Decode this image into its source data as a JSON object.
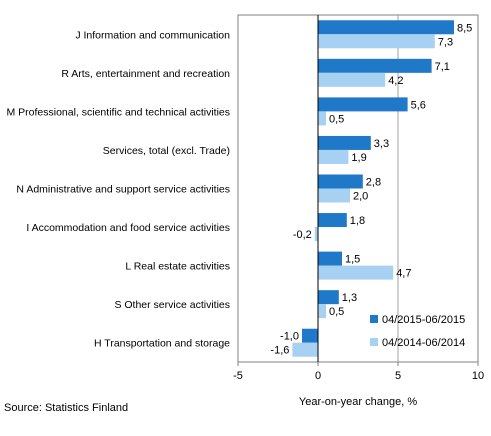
{
  "chart_data": {
    "type": "bar",
    "orientation": "horizontal",
    "title": "",
    "xlabel": "Year-on-year change, %",
    "ylabel": "",
    "xlim": [
      -5,
      10
    ],
    "xticks": [
      -5,
      0,
      5,
      10
    ],
    "xtick_labels": [
      "-5",
      "0",
      "5",
      "10"
    ],
    "reference_line_x": 5,
    "grid": false,
    "legend_position": "bottom-right",
    "categories": [
      "J Information and communication",
      "R Arts, entertainment and recreation",
      "M Professional, scientific and technical activities",
      "Services, total (excl. Trade)",
      "N Administrative and support service activities",
      "I Accommodation and food service activities",
      "L Real estate activities",
      "S Other service activities",
      "H Transportation and storage"
    ],
    "series": [
      {
        "name": "04/2015-06/2015",
        "color": "#1f78c8",
        "values": [
          8.5,
          7.1,
          5.6,
          3.3,
          2.8,
          1.8,
          1.5,
          1.3,
          -1.0
        ],
        "labels": [
          "8,5",
          "7,1",
          "5,6",
          "3,3",
          "2,8",
          "1,8",
          "1,5",
          "1,3",
          "-1,0"
        ]
      },
      {
        "name": "04/2014-06/2014",
        "color": "#a6d1f2",
        "values": [
          7.3,
          4.2,
          0.5,
          1.9,
          2.0,
          -0.2,
          4.7,
          0.5,
          -1.6
        ],
        "labels": [
          "7,3",
          "4,2",
          "0,5",
          "1,9",
          "2,0",
          "-0,2",
          "4,7",
          "0,5",
          "-1,6"
        ]
      }
    ]
  },
  "source": "Source:  Statistics Finland"
}
